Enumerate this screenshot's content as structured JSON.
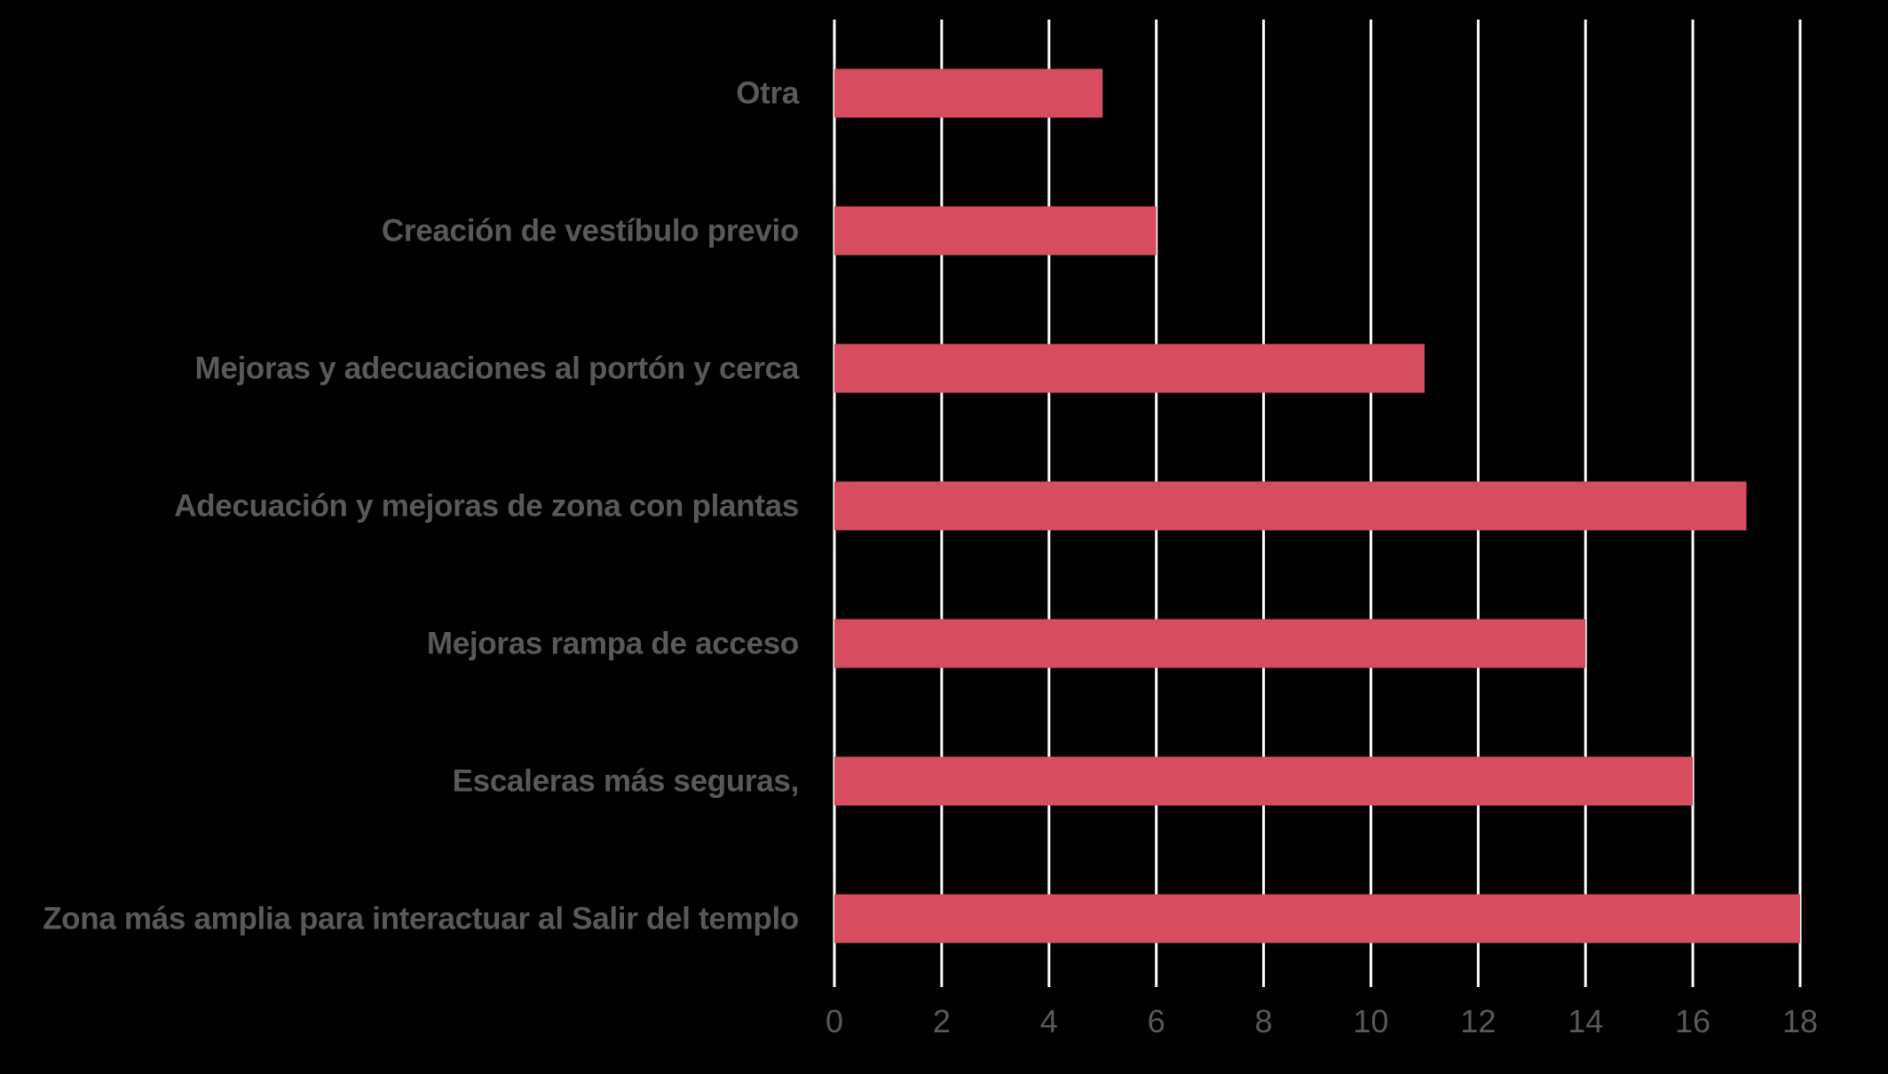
{
  "chart_data": {
    "type": "bar",
    "orientation": "horizontal",
    "title": "",
    "xlabel": "",
    "ylabel": "",
    "categories": [
      "Otra",
      "Creación de vestíbulo previo",
      "Mejoras y adecuaciones al portón y cerca",
      "Adecuación y mejoras de zona con plantas",
      "Mejoras rampa de acceso",
      "Escaleras más seguras,",
      "Zona más amplia para interactuar al Salir del templo"
    ],
    "values": [
      5,
      6,
      11,
      17,
      14,
      16,
      18
    ],
    "xlim": [
      0,
      18
    ],
    "x_ticks": [
      "0",
      "2",
      "4",
      "6",
      "8",
      "10",
      "12",
      "14",
      "16",
      "18"
    ],
    "grid": true,
    "legend": "none"
  },
  "colors": {
    "background": "#000000",
    "bar": "#d64d5f",
    "gridline": "#ffffff",
    "label_text": "#595959",
    "tick_text": "#595959"
  }
}
